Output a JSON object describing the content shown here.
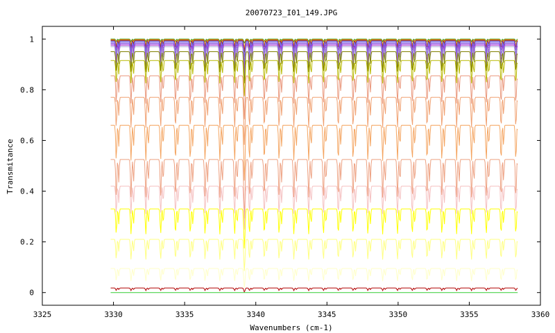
{
  "chart_data": {
    "type": "line",
    "title": "20070723_I01_149.JPG",
    "xlabel": "Wavenumbers (cm-1)",
    "ylabel": "Transmitance",
    "xlim": [
      3325,
      3360
    ],
    "ylim": [
      -0.05,
      1.05
    ],
    "x_ticks": [
      3325,
      3330,
      3335,
      3340,
      3345,
      3350,
      3355,
      3360
    ],
    "y_ticks": [
      0,
      0.2,
      0.4,
      0.6,
      0.8,
      1
    ],
    "x_tick_labels": [
      "3325",
      "3330",
      "3335",
      "3340",
      "3345",
      "3350",
      "3355",
      "3360"
    ],
    "y_tick_labels": [
      "0",
      "0.2",
      "0.4",
      "0.6",
      "0.8",
      "1"
    ],
    "x_range_data": [
      3329.8,
      3358.4
    ],
    "strong_line_at": 3339.2,
    "grid": false,
    "legend": "none",
    "series": [
      {
        "color": "#228B22",
        "baseline": 1.0,
        "depth": 0.01
      },
      {
        "color": "#FFD700",
        "baseline": 0.998,
        "depth": 0.02
      },
      {
        "color": "#DC143C",
        "baseline": 0.996,
        "depth": 0.025
      },
      {
        "color": "#8B4513",
        "baseline": 0.994,
        "depth": 0.03
      },
      {
        "color": "#6A5ACD",
        "baseline": 0.992,
        "depth": 0.04
      },
      {
        "color": "#7B68EE",
        "baseline": 0.988,
        "depth": 0.05
      },
      {
        "color": "#9370DB",
        "baseline": 0.984,
        "depth": 0.06
      },
      {
        "color": "#8A2BE2",
        "baseline": 0.98,
        "depth": 0.07
      },
      {
        "color": "#BA55D3",
        "baseline": 0.975,
        "depth": 0.08
      },
      {
        "color": "#A0A0D0",
        "baseline": 0.97,
        "depth": 0.09
      },
      {
        "color": "#808000",
        "baseline": 0.95,
        "depth": 0.08
      },
      {
        "color": "#B8B800",
        "baseline": 0.915,
        "depth": 0.09
      },
      {
        "color": "#E9967A",
        "baseline": 0.855,
        "depth": 0.11
      },
      {
        "color": "#F0A070",
        "baseline": 0.77,
        "depth": 0.12
      },
      {
        "color": "#F4A460",
        "baseline": 0.66,
        "depth": 0.14
      },
      {
        "color": "#EDA080",
        "baseline": 0.525,
        "depth": 0.15
      },
      {
        "color": "#F5C0C0",
        "baseline": 0.42,
        "depth": 0.11
      },
      {
        "color": "#FFFF00",
        "baseline": 0.33,
        "depth": 0.1
      },
      {
        "color": "#FFFF80",
        "baseline": 0.21,
        "depth": 0.08
      },
      {
        "color": "#FFFFC8",
        "baseline": 0.095,
        "depth": 0.05
      },
      {
        "color": "#B00000",
        "baseline": 0.018,
        "depth": 0.01
      },
      {
        "color": "#32CD32",
        "baseline": 0.0,
        "depth": 0.0
      }
    ]
  }
}
